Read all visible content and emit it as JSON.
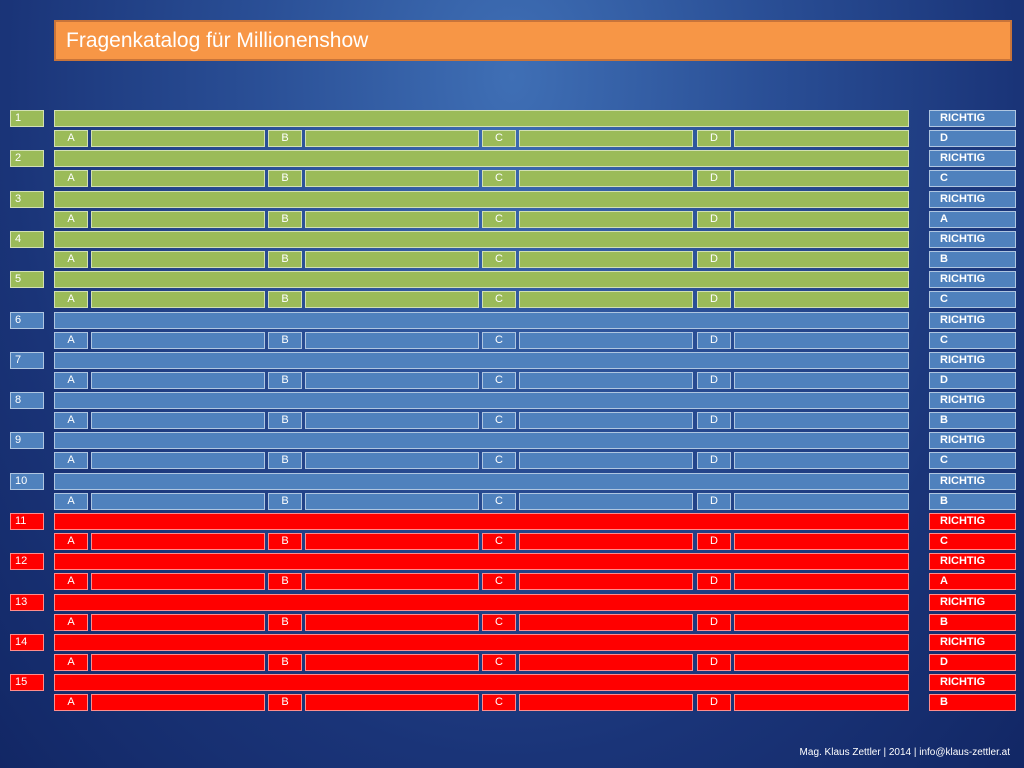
{
  "title": "Fragenkatalog für Millionenshow",
  "option_letters": [
    "A",
    "B",
    "C",
    "D"
  ],
  "correct_label": "RICHTIG",
  "questions": [
    {
      "num": "1",
      "answer": "D",
      "color": "green"
    },
    {
      "num": "2",
      "answer": "C",
      "color": "green"
    },
    {
      "num": "3",
      "answer": "A",
      "color": "green"
    },
    {
      "num": "4",
      "answer": "B",
      "color": "green"
    },
    {
      "num": "5",
      "answer": "C",
      "color": "green"
    },
    {
      "num": "6",
      "answer": "C",
      "color": "blue"
    },
    {
      "num": "7",
      "answer": "D",
      "color": "blue"
    },
    {
      "num": "8",
      "answer": "B",
      "color": "blue"
    },
    {
      "num": "9",
      "answer": "C",
      "color": "blue"
    },
    {
      "num": "10",
      "answer": "B",
      "color": "blue"
    },
    {
      "num": "11",
      "answer": "C",
      "color": "red"
    },
    {
      "num": "12",
      "answer": "A",
      "color": "red"
    },
    {
      "num": "13",
      "answer": "B",
      "color": "red"
    },
    {
      "num": "14",
      "answer": "D",
      "color": "red"
    },
    {
      "num": "15",
      "answer": "B",
      "color": "red"
    }
  ],
  "footer": "Mag. Klaus Zettler | 2014 | info@klaus-zettler.at"
}
